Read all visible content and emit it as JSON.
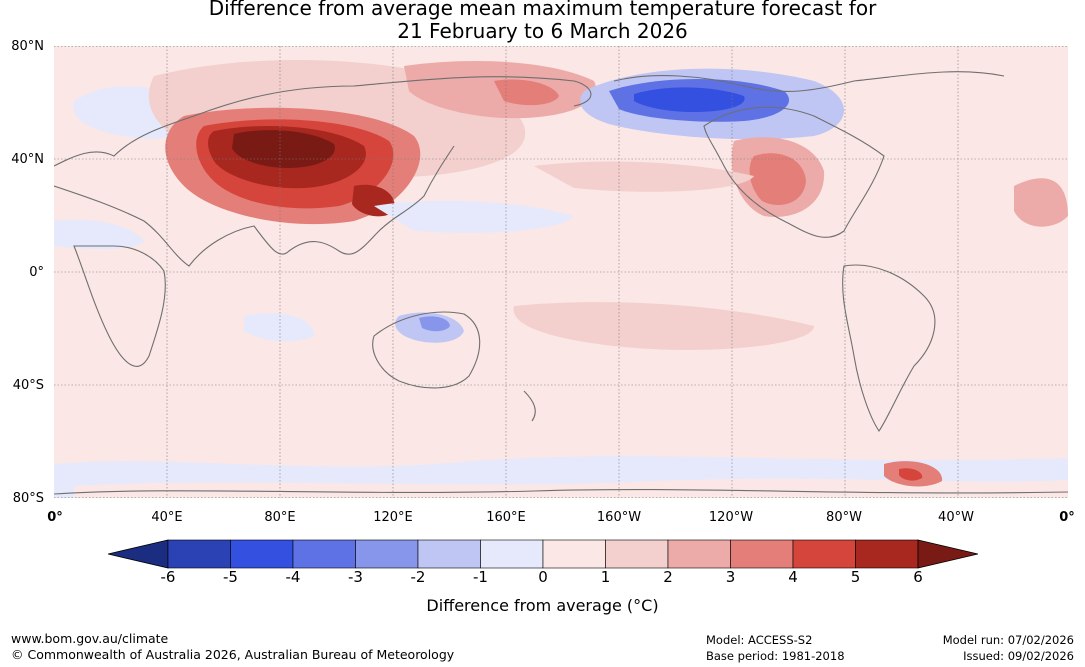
{
  "title": {
    "line1": "Difference from average mean maximum temperature forecast for",
    "line2": "21 February to 6 March 2026"
  },
  "latitude_labels": [
    "80°N",
    "40°N",
    "0°",
    "40°S",
    "80°S"
  ],
  "longitude_labels": [
    "0°",
    "40°E",
    "80°E",
    "120°E",
    "160°E",
    "160°W",
    "120°W",
    "80°W",
    "40°W",
    "0°"
  ],
  "colorbar": {
    "ticks": [
      "-6",
      "-5",
      "-4",
      "-3",
      "-2",
      "-1",
      "0",
      "1",
      "2",
      "3",
      "4",
      "5",
      "6"
    ],
    "colors": [
      "#1b2d80",
      "#2b42b4",
      "#3450e0",
      "#5e72e6",
      "#8796ea",
      "#bfc6f3",
      "#e6e9fb",
      "#fbe7e6",
      "#f3cfce",
      "#ecaaa8",
      "#e47e79",
      "#d5453b",
      "#a82820",
      "#7a1a14"
    ],
    "label": "Difference from average ($^\\circ$C)",
    "label_display": "Difference from average (°C)"
  },
  "footer": {
    "website": "www.bom.gov.au/climate",
    "copyright": "© Commonwealth of Australia 2026, Australian Bureau of Meteorology",
    "model": "Model: ACCESS-S2",
    "base_period": "Base period: 1981-2018",
    "model_run": "Model run: 07/02/2026",
    "issued": "Issued: 09/02/2026"
  }
}
